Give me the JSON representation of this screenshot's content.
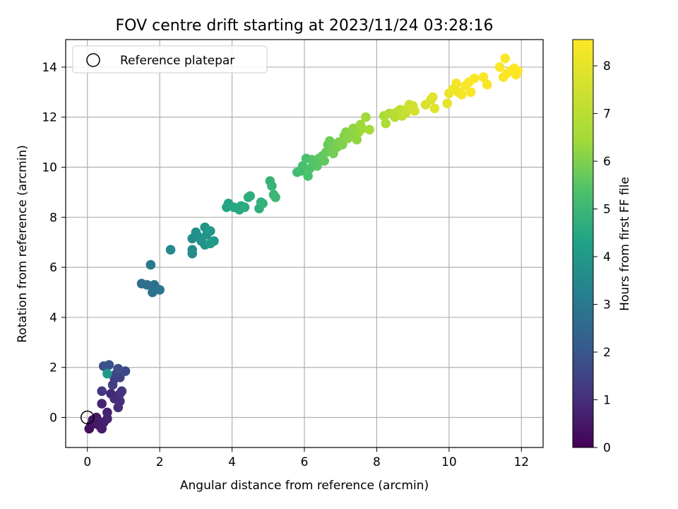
{
  "chart_data": {
    "type": "scatter",
    "title": "FOV centre drift starting at 2023/11/24 03:28:16",
    "xlabel": "Angular distance from reference (arcmin)",
    "ylabel": "Rotation from reference (arcmin)",
    "xlim": [
      -0.6,
      12.6
    ],
    "ylim": [
      -1.2,
      15.1
    ],
    "xticks": [
      0,
      2,
      4,
      6,
      8,
      10,
      12
    ],
    "yticks": [
      0,
      2,
      4,
      6,
      8,
      10,
      12,
      14
    ],
    "grid": true,
    "legend": {
      "position": "top-left",
      "entries": [
        {
          "label": "Reference platepar",
          "marker": "open-circle"
        }
      ]
    },
    "reference_point": {
      "x": 0.0,
      "y": 0.0
    },
    "colorbar": {
      "label": "Hours from first FF file",
      "colormap": "viridis",
      "range": [
        0,
        8.55
      ],
      "ticks": [
        0,
        1,
        2,
        3,
        4,
        5,
        6,
        7,
        8
      ]
    },
    "points": [
      {
        "x": 0.05,
        "y": -0.45,
        "t": 0.3
      },
      {
        "x": 0.1,
        "y": -0.3,
        "t": 0.35
      },
      {
        "x": 0.15,
        "y": -0.1,
        "t": 0.4
      },
      {
        "x": 0.2,
        "y": -0.25,
        "t": 0.5
      },
      {
        "x": 0.25,
        "y": 0.0,
        "t": 0.55
      },
      {
        "x": 0.3,
        "y": -0.15,
        "t": 0.6
      },
      {
        "x": 0.35,
        "y": -0.35,
        "t": 0.65
      },
      {
        "x": 0.4,
        "y": -0.45,
        "t": 0.7
      },
      {
        "x": 0.45,
        "y": -0.2,
        "t": 0.75
      },
      {
        "x": 0.55,
        "y": -0.05,
        "t": 0.8
      },
      {
        "x": 0.55,
        "y": 0.2,
        "t": 0.85
      },
      {
        "x": 0.4,
        "y": 0.55,
        "t": 0.9
      },
      {
        "x": 0.65,
        "y": 0.95,
        "t": 1.0
      },
      {
        "x": 0.75,
        "y": 0.75,
        "t": 1.05
      },
      {
        "x": 0.85,
        "y": 0.4,
        "t": 1.1
      },
      {
        "x": 0.9,
        "y": 0.65,
        "t": 1.15
      },
      {
        "x": 0.9,
        "y": 0.95,
        "t": 1.2
      },
      {
        "x": 0.95,
        "y": 1.05,
        "t": 1.3
      },
      {
        "x": 0.4,
        "y": 1.05,
        "t": 1.4
      },
      {
        "x": 0.7,
        "y": 1.3,
        "t": 1.5
      },
      {
        "x": 0.75,
        "y": 1.55,
        "t": 1.6
      },
      {
        "x": 0.9,
        "y": 1.6,
        "t": 1.7
      },
      {
        "x": 0.8,
        "y": 1.75,
        "t": 1.8
      },
      {
        "x": 1.05,
        "y": 1.85,
        "t": 1.9
      },
      {
        "x": 0.85,
        "y": 1.95,
        "t": 2.0
      },
      {
        "x": 0.45,
        "y": 2.05,
        "t": 2.1
      },
      {
        "x": 0.6,
        "y": 2.1,
        "t": 2.2
      },
      {
        "x": 0.55,
        "y": 1.75,
        "t": 4.6
      },
      {
        "x": 1.5,
        "y": 5.35,
        "t": 3.0
      },
      {
        "x": 1.65,
        "y": 5.3,
        "t": 3.1
      },
      {
        "x": 1.85,
        "y": 5.3,
        "t": 3.15
      },
      {
        "x": 1.8,
        "y": 5.0,
        "t": 3.2
      },
      {
        "x": 2.0,
        "y": 5.1,
        "t": 3.3
      },
      {
        "x": 1.75,
        "y": 6.1,
        "t": 3.5
      },
      {
        "x": 2.3,
        "y": 6.7,
        "t": 4.0
      },
      {
        "x": 2.9,
        "y": 6.55,
        "t": 4.1
      },
      {
        "x": 2.9,
        "y": 6.7,
        "t": 4.15
      },
      {
        "x": 2.9,
        "y": 7.15,
        "t": 4.2
      },
      {
        "x": 3.0,
        "y": 7.4,
        "t": 4.25
      },
      {
        "x": 3.05,
        "y": 7.25,
        "t": 4.3
      },
      {
        "x": 3.15,
        "y": 7.05,
        "t": 4.35
      },
      {
        "x": 3.25,
        "y": 6.9,
        "t": 4.4
      },
      {
        "x": 3.3,
        "y": 7.3,
        "t": 4.45
      },
      {
        "x": 3.25,
        "y": 7.6,
        "t": 4.5
      },
      {
        "x": 3.4,
        "y": 7.45,
        "t": 4.55
      },
      {
        "x": 3.5,
        "y": 7.05,
        "t": 4.6
      },
      {
        "x": 3.4,
        "y": 6.95,
        "t": 4.65
      },
      {
        "x": 3.85,
        "y": 8.4,
        "t": 5.0
      },
      {
        "x": 3.9,
        "y": 8.55,
        "t": 5.05
      },
      {
        "x": 4.05,
        "y": 8.4,
        "t": 5.1
      },
      {
        "x": 4.2,
        "y": 8.3,
        "t": 5.15
      },
      {
        "x": 4.25,
        "y": 8.45,
        "t": 5.2
      },
      {
        "x": 4.35,
        "y": 8.4,
        "t": 5.25
      },
      {
        "x": 4.45,
        "y": 8.8,
        "t": 5.3
      },
      {
        "x": 4.5,
        "y": 8.85,
        "t": 5.35
      },
      {
        "x": 4.75,
        "y": 8.35,
        "t": 5.4
      },
      {
        "x": 4.8,
        "y": 8.6,
        "t": 5.45
      },
      {
        "x": 4.85,
        "y": 8.55,
        "t": 5.5
      },
      {
        "x": 5.05,
        "y": 9.45,
        "t": 5.55
      },
      {
        "x": 5.1,
        "y": 9.25,
        "t": 5.6
      },
      {
        "x": 5.15,
        "y": 8.9,
        "t": 5.65
      },
      {
        "x": 5.2,
        "y": 8.8,
        "t": 5.7
      },
      {
        "x": 5.8,
        "y": 9.8,
        "t": 5.9
      },
      {
        "x": 5.9,
        "y": 9.85,
        "t": 5.95
      },
      {
        "x": 5.95,
        "y": 10.05,
        "t": 6.0
      },
      {
        "x": 6.05,
        "y": 10.35,
        "t": 6.05
      },
      {
        "x": 6.1,
        "y": 9.65,
        "t": 6.1
      },
      {
        "x": 6.15,
        "y": 9.95,
        "t": 6.15
      },
      {
        "x": 6.2,
        "y": 10.3,
        "t": 6.2
      },
      {
        "x": 6.3,
        "y": 10.15,
        "t": 6.25
      },
      {
        "x": 6.35,
        "y": 10.05,
        "t": 6.3
      },
      {
        "x": 6.4,
        "y": 10.35,
        "t": 6.35
      },
      {
        "x": 6.5,
        "y": 10.45,
        "t": 6.4
      },
      {
        "x": 6.55,
        "y": 10.25,
        "t": 6.45
      },
      {
        "x": 6.6,
        "y": 10.6,
        "t": 6.5
      },
      {
        "x": 6.65,
        "y": 10.9,
        "t": 6.55
      },
      {
        "x": 6.7,
        "y": 11.05,
        "t": 6.6
      },
      {
        "x": 6.75,
        "y": 10.7,
        "t": 6.65
      },
      {
        "x": 6.8,
        "y": 10.55,
        "t": 6.7
      },
      {
        "x": 6.9,
        "y": 10.8,
        "t": 6.75
      },
      {
        "x": 6.95,
        "y": 11.0,
        "t": 6.8
      },
      {
        "x": 7.05,
        "y": 10.9,
        "t": 6.85
      },
      {
        "x": 7.1,
        "y": 11.25,
        "t": 6.9
      },
      {
        "x": 7.15,
        "y": 11.4,
        "t": 6.95
      },
      {
        "x": 7.2,
        "y": 11.15,
        "t": 7.0
      },
      {
        "x": 7.3,
        "y": 11.3,
        "t": 7.05
      },
      {
        "x": 7.35,
        "y": 11.55,
        "t": 7.1
      },
      {
        "x": 7.45,
        "y": 11.1,
        "t": 7.15
      },
      {
        "x": 7.5,
        "y": 11.4,
        "t": 7.2
      },
      {
        "x": 7.55,
        "y": 11.7,
        "t": 7.25
      },
      {
        "x": 7.6,
        "y": 11.55,
        "t": 7.3
      },
      {
        "x": 7.7,
        "y": 12.0,
        "t": 7.35
      },
      {
        "x": 7.8,
        "y": 11.5,
        "t": 7.4
      },
      {
        "x": 8.2,
        "y": 12.05,
        "t": 7.45
      },
      {
        "x": 8.25,
        "y": 11.75,
        "t": 7.5
      },
      {
        "x": 8.35,
        "y": 12.15,
        "t": 7.55
      },
      {
        "x": 8.5,
        "y": 12.0,
        "t": 7.6
      },
      {
        "x": 8.55,
        "y": 12.2,
        "t": 7.65
      },
      {
        "x": 8.65,
        "y": 12.3,
        "t": 7.7
      },
      {
        "x": 8.7,
        "y": 12.05,
        "t": 7.75
      },
      {
        "x": 8.8,
        "y": 12.15,
        "t": 7.8
      },
      {
        "x": 8.85,
        "y": 12.35,
        "t": 7.85
      },
      {
        "x": 8.9,
        "y": 12.5,
        "t": 7.9
      },
      {
        "x": 9.0,
        "y": 12.45,
        "t": 7.95
      },
      {
        "x": 9.05,
        "y": 12.25,
        "t": 8.0
      },
      {
        "x": 9.35,
        "y": 12.5,
        "t": 8.05
      },
      {
        "x": 9.5,
        "y": 12.7,
        "t": 8.1
      },
      {
        "x": 9.55,
        "y": 12.8,
        "t": 8.15
      },
      {
        "x": 9.6,
        "y": 12.35,
        "t": 8.2
      },
      {
        "x": 9.95,
        "y": 12.55,
        "t": 8.25
      },
      {
        "x": 10.0,
        "y": 12.95,
        "t": 8.3
      },
      {
        "x": 10.1,
        "y": 13.1,
        "t": 8.35
      },
      {
        "x": 10.2,
        "y": 13.35,
        "t": 8.4
      },
      {
        "x": 10.25,
        "y": 13.0,
        "t": 8.4
      },
      {
        "x": 10.35,
        "y": 12.9,
        "t": 8.45
      },
      {
        "x": 10.45,
        "y": 13.25,
        "t": 8.45
      },
      {
        "x": 10.55,
        "y": 13.4,
        "t": 8.5
      },
      {
        "x": 10.6,
        "y": 13.0,
        "t": 8.5
      },
      {
        "x": 10.7,
        "y": 13.55,
        "t": 8.5
      },
      {
        "x": 10.95,
        "y": 13.6,
        "t": 8.5
      },
      {
        "x": 11.05,
        "y": 13.3,
        "t": 8.5
      },
      {
        "x": 11.4,
        "y": 14.0,
        "t": 8.5
      },
      {
        "x": 11.55,
        "y": 14.35,
        "t": 8.55
      },
      {
        "x": 11.6,
        "y": 13.75,
        "t": 8.55
      },
      {
        "x": 11.7,
        "y": 13.85,
        "t": 8.55
      },
      {
        "x": 11.8,
        "y": 13.95,
        "t": 8.55
      },
      {
        "x": 11.85,
        "y": 13.7,
        "t": 8.55
      },
      {
        "x": 11.9,
        "y": 13.85,
        "t": 8.55
      },
      {
        "x": 11.5,
        "y": 13.6,
        "t": 8.5
      }
    ]
  }
}
